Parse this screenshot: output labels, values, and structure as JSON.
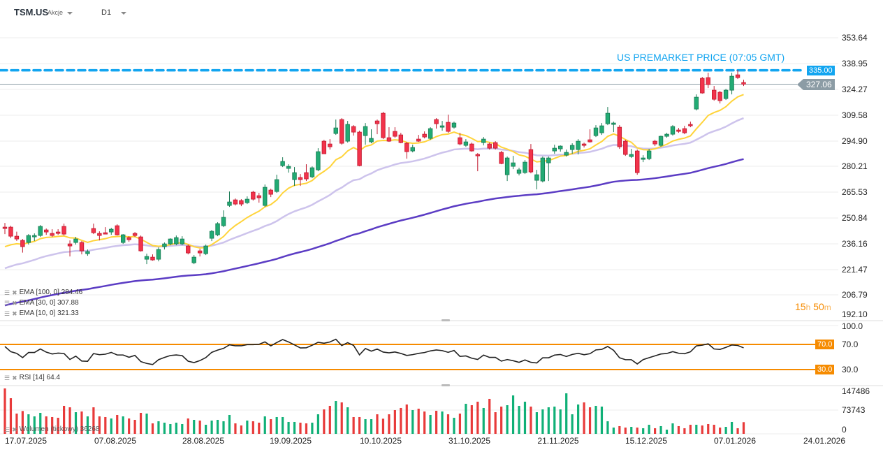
{
  "header": {
    "symbol": "TSM.US",
    "type": "Akcje",
    "timeframe": "D1"
  },
  "colors": {
    "up": "#22ab74",
    "down": "#f2334b",
    "premarket": "#12a5f0",
    "last": "#8c9ca5",
    "rsi_levels": "#f68b00",
    "ema100": "#5b3cc4",
    "ema30": "#cdc3ec",
    "ema10": "#ffd43b",
    "vol_up": "#10b077",
    "vol_down": "#e83a3a"
  },
  "price_axis": {
    "ticks": [
      "353.64",
      "338.95",
      "324.27",
      "309.58",
      "294.90",
      "280.21",
      "265.53",
      "250.84",
      "236.16",
      "221.47",
      "206.79",
      "192.10"
    ]
  },
  "premarket": {
    "label": "US PREMARKET PRICE (07:05 GMT)",
    "price": 335.0,
    "tag": "335.00"
  },
  "last_price": {
    "price": 327.06,
    "tag": "327.06"
  },
  "countdown": {
    "hours": "15",
    "h": "h",
    "minutes": "50",
    "m": "m"
  },
  "indicators": {
    "ema100": "EMA  [100,  0]  284.46",
    "ema30": "EMA  [30,  0]  307.88",
    "ema10": "EMA  [10,  0]  321.33",
    "rsi": "RSI  [14]  64.4",
    "volume": "Wolumen  (tickowy)  36268"
  },
  "rsi_axis": {
    "ticks": [
      "100.0",
      "70.0",
      "30.0"
    ],
    "upper": 70,
    "lower": 30,
    "upper_tag": "70.0",
    "lower_tag": "30.0"
  },
  "volume_axis": {
    "ticks": [
      "147486",
      "73743",
      "0"
    ]
  },
  "dates": [
    "17.07.2025",
    "07.08.2025",
    "28.08.2025",
    "19.09.2025",
    "10.10.2025",
    "31.10.2025",
    "21.11.2025",
    "15.12.2025",
    "07.01.2026",
    "24.01.2026"
  ],
  "chart_data": {
    "type": "candlestick",
    "ylim": [
      192.1,
      353.64
    ],
    "ema_start": {
      "ema10": 234.0,
      "ema30": 221.6,
      "ema100": 200.4
    },
    "candles_ohlc": [
      [
        245.2,
        247.6,
        241.2,
        244.4
      ],
      [
        245.2,
        246.0,
        238.9,
        240.0
      ],
      [
        240.0,
        242.6,
        237.3,
        238.4
      ],
      [
        237.6,
        238.4,
        230.6,
        234.0
      ],
      [
        236.4,
        241.2,
        235.2,
        240.4
      ],
      [
        239.6,
        241.6,
        237.2,
        240.4
      ],
      [
        240.4,
        246.4,
        239.6,
        245.6
      ],
      [
        243.6,
        244.4,
        240.8,
        242.4
      ],
      [
        241.6,
        244.0,
        239.6,
        240.4
      ],
      [
        242.4,
        244.0,
        240.8,
        241.6
      ],
      [
        245.6,
        247.2,
        240.4,
        241.2
      ],
      [
        235.6,
        237.6,
        228.4,
        234.4
      ],
      [
        236.4,
        239.6,
        235.2,
        238.4
      ],
      [
        236.4,
        237.2,
        229.6,
        231.6
      ],
      [
        230.0,
        232.4,
        228.8,
        231.2
      ],
      [
        244.4,
        247.2,
        241.2,
        242.0
      ],
      [
        241.6,
        242.8,
        237.6,
        240.4
      ],
      [
        242.0,
        245.2,
        241.2,
        241.2
      ],
      [
        242.4,
        244.8,
        240.8,
        244.0
      ],
      [
        246.0,
        246.8,
        240.4,
        240.8
      ],
      [
        236.4,
        241.2,
        235.6,
        240.8
      ],
      [
        239.2,
        240.0,
        236.8,
        238.0
      ],
      [
        241.6,
        242.4,
        239.6,
        240.4
      ],
      [
        239.6,
        240.4,
        231.2,
        231.6
      ],
      [
        226.8,
        230.0,
        224.0,
        228.4
      ],
      [
        228.0,
        229.6,
        226.0,
        226.4
      ],
      [
        226.8,
        233.6,
        225.6,
        232.4
      ],
      [
        234.0,
        236.4,
        232.4,
        235.6
      ],
      [
        235.6,
        238.8,
        234.8,
        238.4
      ],
      [
        235.6,
        240.4,
        234.8,
        239.2
      ],
      [
        235.6,
        240.0,
        234.8,
        238.4
      ],
      [
        234.4,
        235.2,
        229.6,
        230.4
      ],
      [
        224.8,
        229.2,
        224.0,
        228.0
      ],
      [
        231.6,
        232.8,
        228.4,
        230.4
      ],
      [
        230.0,
        235.2,
        229.2,
        234.4
      ],
      [
        238.8,
        243.6,
        237.2,
        242.8
      ],
      [
        240.8,
        248.0,
        240.0,
        247.2
      ],
      [
        246.0,
        254.8,
        245.2,
        250.8
      ],
      [
        257.6,
        265.6,
        256.8,
        259.6
      ],
      [
        260.8,
        261.6,
        257.6,
        258.4
      ],
      [
        260.4,
        261.2,
        257.2,
        258.4
      ],
      [
        259.2,
        262.8,
        258.4,
        261.2
      ],
      [
        265.2,
        266.0,
        260.4,
        261.2
      ],
      [
        263.2,
        264.8,
        259.2,
        262.0
      ],
      [
        257.6,
        269.6,
        256.8,
        268.0
      ],
      [
        266.4,
        267.2,
        262.4,
        264.0
      ],
      [
        265.6,
        275.2,
        264.8,
        272.4
      ],
      [
        280.4,
        285.2,
        279.6,
        282.8
      ],
      [
        278.8,
        281.2,
        276.4,
        280.0
      ],
      [
        272.4,
        279.6,
        268.8,
        276.4
      ],
      [
        273.6,
        275.6,
        268.8,
        272.4
      ],
      [
        276.4,
        281.2,
        271.6,
        272.8
      ],
      [
        274.0,
        280.0,
        273.2,
        279.2
      ],
      [
        278.0,
        290.4,
        277.2,
        288.4
      ],
      [
        294.4,
        295.2,
        287.2,
        287.2
      ],
      [
        292.8,
        295.6,
        289.6,
        291.2
      ],
      [
        298.8,
        306.8,
        298.0,
        302.0
      ],
      [
        306.8,
        307.6,
        292.4,
        293.2
      ],
      [
        294.4,
        306.0,
        293.6,
        304.0
      ],
      [
        302.8,
        303.6,
        297.6,
        299.6
      ],
      [
        299.6,
        300.4,
        280.0,
        280.4
      ],
      [
        297.6,
        304.8,
        292.4,
        302.8
      ],
      [
        294.0,
        301.2,
        293.2,
        296.0
      ],
      [
        306.0,
        306.8,
        298.4,
        304.4
      ],
      [
        310.4,
        311.2,
        295.6,
        296.4
      ],
      [
        296.4,
        302.4,
        294.0,
        294.4
      ],
      [
        300.0,
        302.4,
        296.4,
        297.2
      ],
      [
        298.0,
        299.2,
        293.2,
        293.6
      ],
      [
        293.2,
        294.0,
        284.4,
        288.4
      ],
      [
        288.8,
        292.4,
        288.0,
        290.8
      ],
      [
        295.6,
        298.0,
        294.0,
        294.4
      ],
      [
        298.4,
        300.0,
        296.0,
        296.8
      ],
      [
        296.0,
        302.4,
        295.2,
        301.6
      ],
      [
        306.8,
        307.6,
        301.6,
        304.4
      ],
      [
        302.4,
        306.0,
        300.4,
        303.2
      ],
      [
        305.2,
        309.6,
        299.2,
        300.0
      ],
      [
        302.4,
        305.6,
        301.6,
        304.8
      ],
      [
        296.4,
        299.2,
        292.0,
        292.8
      ],
      [
        292.0,
        295.6,
        291.2,
        294.0
      ],
      [
        292.8,
        293.6,
        288.4,
        288.8
      ],
      [
        286.8,
        287.6,
        277.2,
        286.0
      ],
      [
        293.6,
        296.8,
        292.0,
        295.6
      ],
      [
        292.8,
        293.6,
        289.6,
        290.4
      ],
      [
        293.6,
        294.4,
        289.6,
        290.4
      ],
      [
        288.0,
        288.8,
        281.2,
        281.6
      ],
      [
        275.2,
        285.6,
        271.6,
        284.8
      ],
      [
        280.0,
        286.0,
        278.4,
        282.0
      ],
      [
        276.0,
        279.2,
        274.8,
        278.0
      ],
      [
        276.4,
        283.6,
        275.6,
        282.4
      ],
      [
        289.6,
        292.8,
        276.0,
        276.8
      ],
      [
        272.0,
        278.0,
        266.8,
        275.2
      ],
      [
        271.6,
        285.6,
        270.8,
        284.8
      ],
      [
        282.0,
        285.6,
        271.6,
        284.8
      ],
      [
        288.8,
        292.4,
        287.2,
        290.4
      ],
      [
        290.0,
        292.0,
        288.4,
        291.6
      ],
      [
        286.4,
        289.6,
        285.6,
        288.0
      ],
      [
        289.6,
        293.2,
        287.2,
        292.0
      ],
      [
        289.6,
        295.6,
        286.8,
        294.4
      ],
      [
        292.8,
        293.6,
        290.8,
        292.0
      ],
      [
        295.2,
        301.2,
        293.6,
        294.0
      ],
      [
        297.6,
        303.6,
        296.8,
        302.0
      ],
      [
        299.2,
        304.8,
        298.0,
        303.2
      ],
      [
        304.4,
        314.0,
        303.6,
        310.4
      ],
      [
        304.0,
        305.6,
        299.6,
        304.8
      ],
      [
        302.4,
        303.6,
        290.0,
        291.2
      ],
      [
        294.4,
        295.2,
        286.0,
        286.8
      ],
      [
        285.6,
        290.0,
        284.8,
        286.8
      ],
      [
        288.8,
        289.6,
        275.2,
        276.4
      ],
      [
        284.0,
        286.4,
        282.4,
        284.8
      ],
      [
        284.4,
        290.0,
        283.6,
        288.8
      ],
      [
        294.4,
        295.2,
        291.6,
        292.8
      ],
      [
        292.0,
        297.6,
        291.2,
        297.2
      ],
      [
        297.2,
        299.2,
        296.4,
        298.4
      ],
      [
        298.4,
        303.6,
        297.6,
        302.8
      ],
      [
        300.8,
        302.0,
        299.2,
        300.0
      ],
      [
        301.6,
        303.2,
        298.4,
        299.2
      ],
      [
        304.0,
        305.6,
        302.4,
        303.2
      ],
      [
        312.8,
        321.2,
        312.0,
        319.6
      ],
      [
        330.4,
        331.2,
        321.6,
        322.0
      ],
      [
        330.8,
        333.6,
        324.8,
        326.8
      ],
      [
        323.6,
        326.0,
        317.6,
        318.4
      ],
      [
        322.4,
        323.2,
        316.0,
        317.6
      ],
      [
        318.8,
        324.4,
        318.0,
        323.6
      ],
      [
        323.6,
        333.6,
        321.2,
        331.6
      ],
      [
        332.4,
        335.2,
        330.0,
        330.8
      ],
      [
        328.0,
        329.6,
        326.0,
        327.06
      ]
    ],
    "volume": [
      141000,
      110600,
      62900,
      70900,
      60700,
      54200,
      65100,
      54200,
      52100,
      49900,
      86800,
      82400,
      67200,
      69400,
      54200,
      82400,
      54200,
      52100,
      47700,
      58600,
      54200,
      47700,
      43400,
      65100,
      62900,
      32500,
      39000,
      34700,
      30400,
      34700,
      30400,
      47700,
      43400,
      41200,
      28200,
      41200,
      43400,
      39000,
      58600,
      32500,
      26000,
      41200,
      39000,
      34700,
      54200,
      45500,
      52100,
      52100,
      36900,
      36900,
      34700,
      32500,
      34700,
      60700,
      75900,
      86800,
      101900,
      97600,
      82400,
      52100,
      52100,
      45500,
      45500,
      60700,
      47000,
      60700,
      73700,
      80300,
      91100,
      73700,
      78100,
      69400,
      58600,
      71600,
      69400,
      60700,
      49900,
      62900,
      93300,
      88900,
      99800,
      80300,
      108500,
      67200,
      84600,
      88900,
      119300,
      86800,
      99800,
      84600,
      67200,
      75900,
      82400,
      84600,
      75900,
      125800,
      60700,
      91100,
      97600,
      82400,
      86800,
      84600,
      39000,
      19500,
      23900,
      19500,
      21700,
      19500,
      17400,
      28200,
      17400,
      23900,
      13000,
      32500,
      23900,
      17400,
      28200,
      28200,
      26000,
      30400,
      28200,
      19500,
      21700,
      36900,
      17400,
      36268
    ],
    "volume_max": 147486,
    "rsi_range": [
      0,
      100
    ]
  }
}
